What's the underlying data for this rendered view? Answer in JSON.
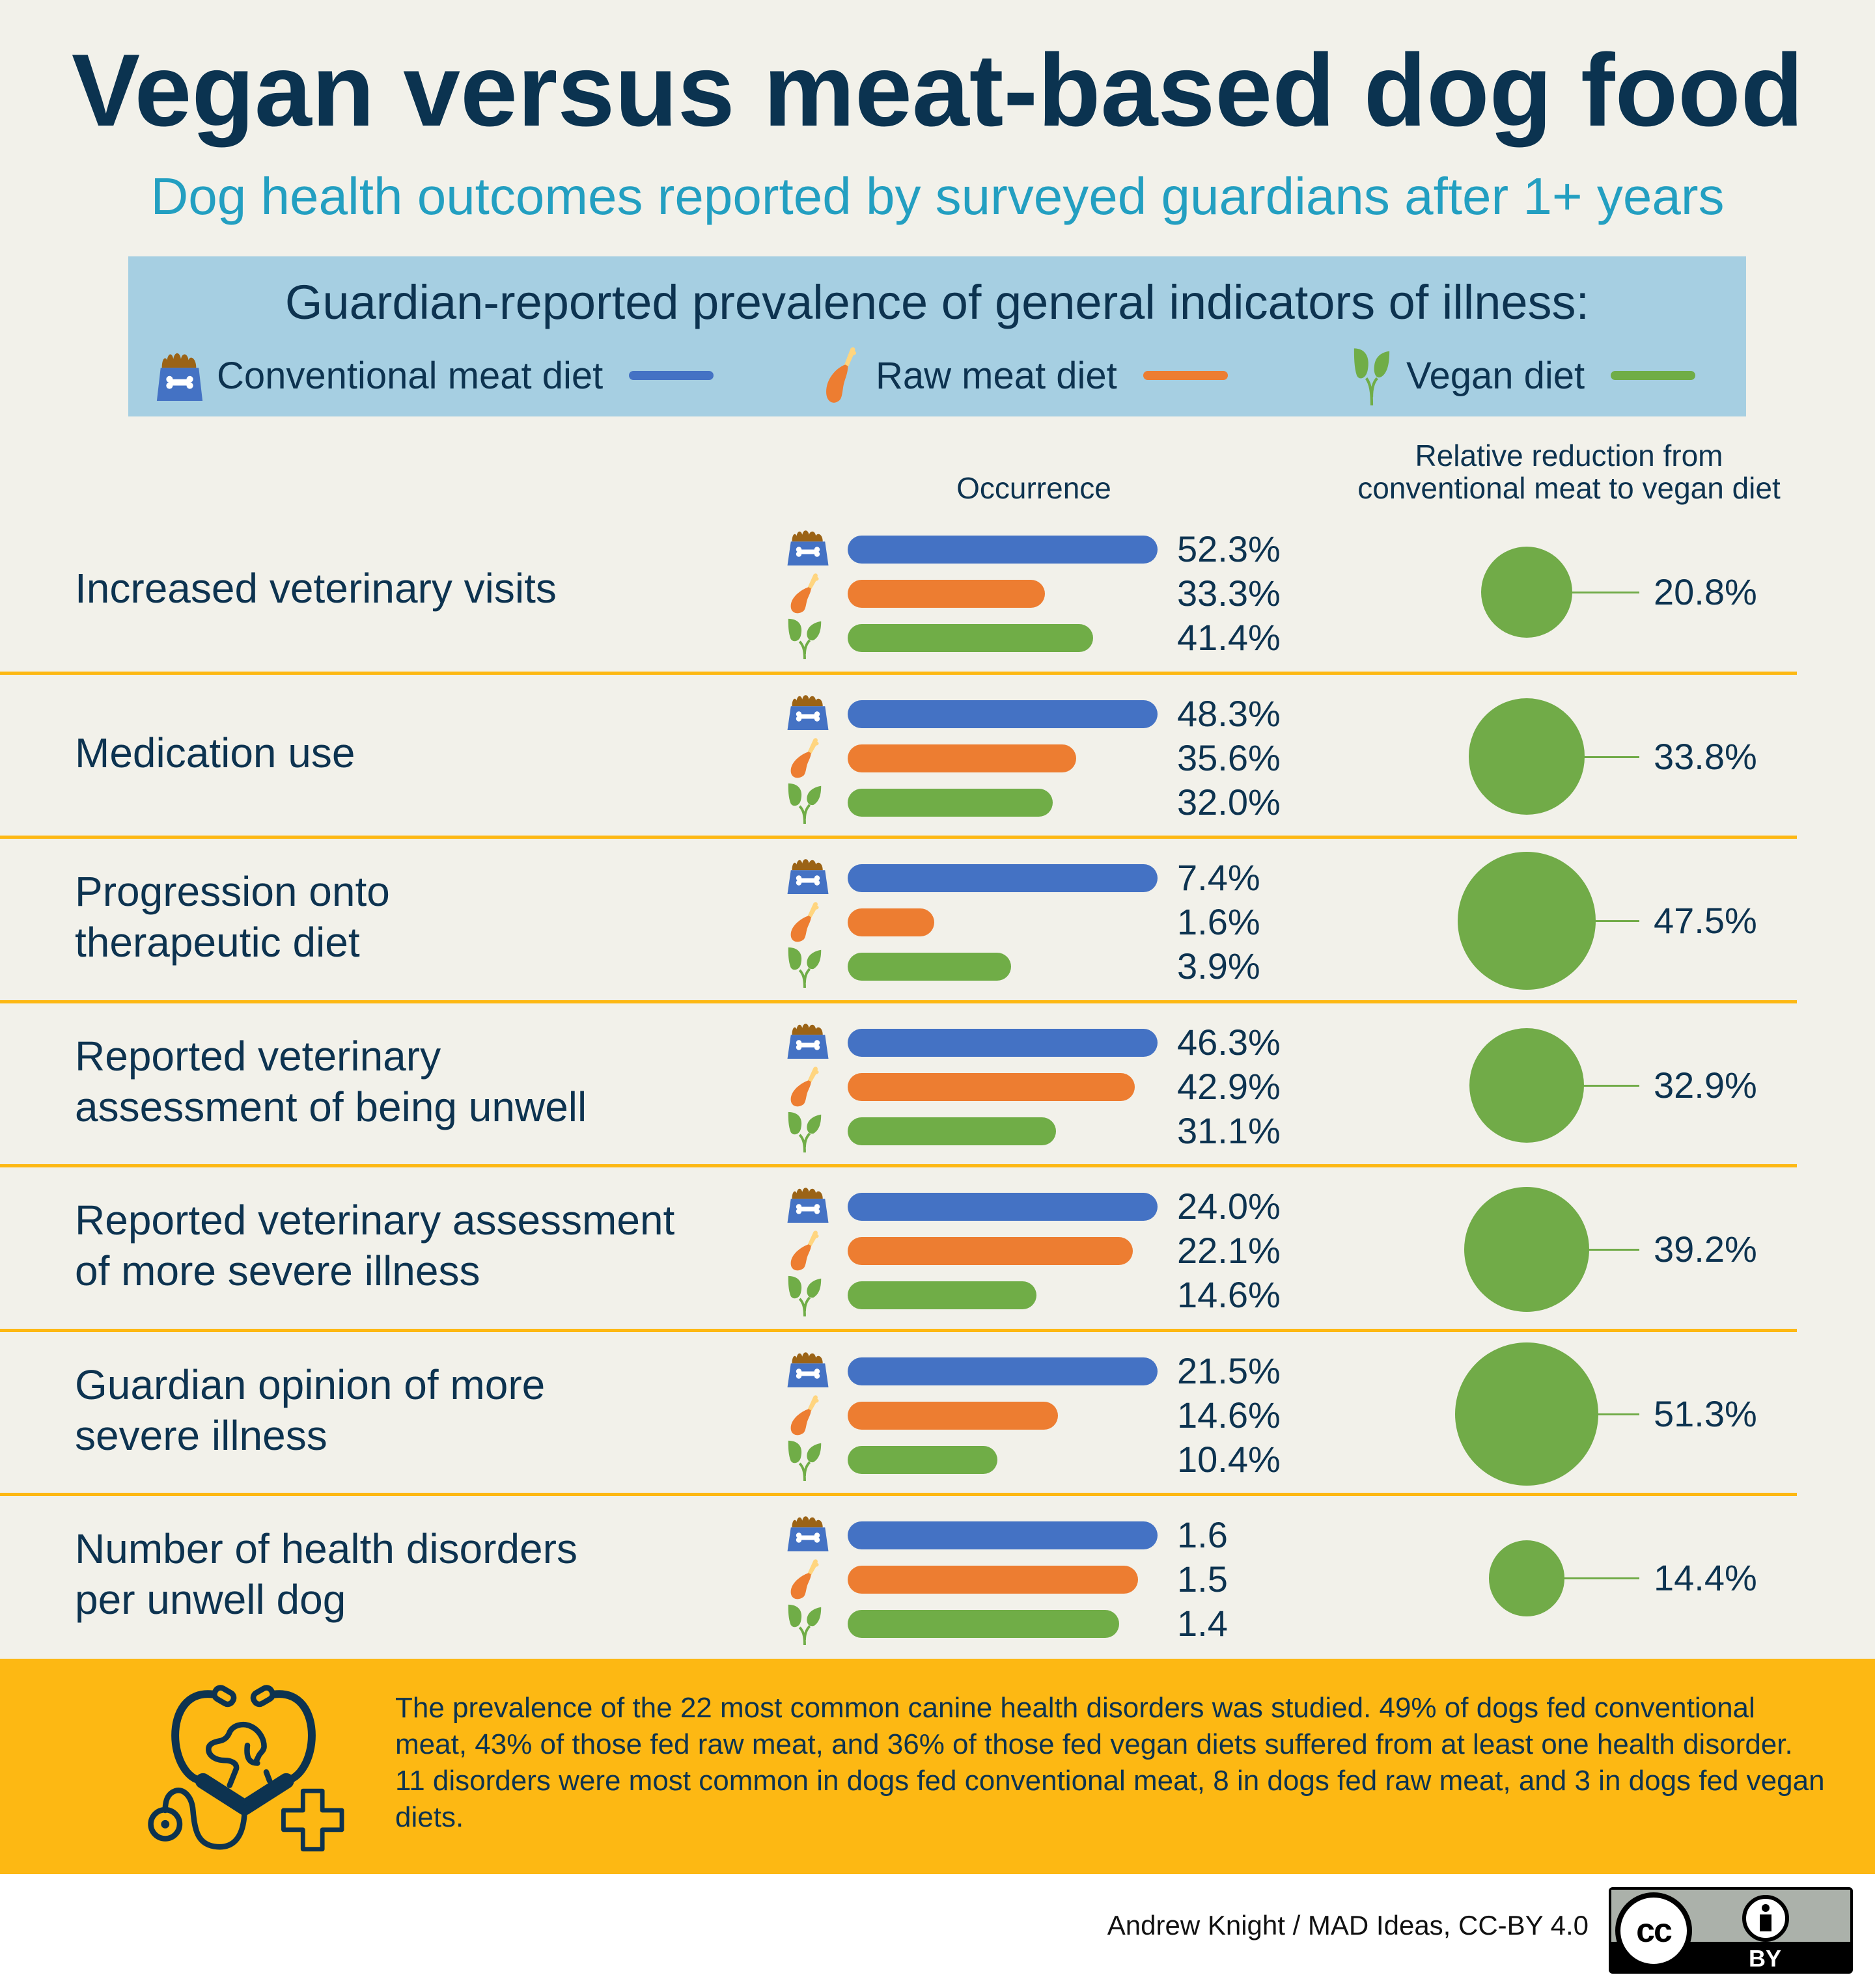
{
  "header": {
    "title": "Vegan versus meat-based dog food",
    "subtitle": "Dog health outcomes reported by surveyed guardians after 1+ years"
  },
  "legend": {
    "title": "Guardian-reported prevalence of general indicators of illness:",
    "items": [
      {
        "label": "Conventional meat diet",
        "icon": "dog-food-bowl-icon",
        "color": "#4472c4"
      },
      {
        "label": "Raw meat diet",
        "icon": "chicken-drumstick-icon",
        "color": "#ed7d31"
      },
      {
        "label": "Vegan diet",
        "icon": "sprout-icon",
        "color": "#70ad47"
      }
    ]
  },
  "columns": {
    "occurrence": "Occurrence",
    "reduction_line1": "Relative reduction from",
    "reduction_line2": "conventional meat to vegan diet"
  },
  "chart_data": {
    "type": "bar",
    "title": "Guardian-reported prevalence of general indicators of illness",
    "series_names": [
      "Conventional meat diet",
      "Raw meat diet",
      "Vegan diet"
    ],
    "series_colors": [
      "#4472c4",
      "#ed7d31",
      "#70ad47"
    ],
    "bar_scaling": "each row normalized to conventional meat value",
    "reduction_marker": "bubble (area proportional to value)",
    "rows": [
      {
        "label_lines": [
          "Increased veterinary visits"
        ],
        "values": [
          52.3,
          33.3,
          41.4
        ],
        "value_labels": [
          "52.3%",
          "33.3%",
          "41.4%"
        ],
        "reduction": 20.8,
        "reduction_label": "20.8%"
      },
      {
        "label_lines": [
          "Medication use"
        ],
        "values": [
          48.3,
          35.6,
          32.0
        ],
        "value_labels": [
          "48.3%",
          "35.6%",
          "32.0%"
        ],
        "reduction": 33.8,
        "reduction_label": "33.8%"
      },
      {
        "label_lines": [
          "Progression onto",
          "therapeutic diet"
        ],
        "values": [
          7.4,
          1.6,
          3.9
        ],
        "value_labels": [
          "7.4%",
          "1.6%",
          "3.9%"
        ],
        "reduction": 47.5,
        "reduction_label": "47.5%"
      },
      {
        "label_lines": [
          "Reported veterinary",
          "assessment of being unwell"
        ],
        "values": [
          46.3,
          42.9,
          31.1
        ],
        "value_labels": [
          "46.3%",
          "42.9%",
          "31.1%"
        ],
        "reduction": 32.9,
        "reduction_label": "32.9%"
      },
      {
        "label_lines": [
          "Reported veterinary assessment",
          "of more severe illness"
        ],
        "values": [
          24.0,
          22.1,
          14.6
        ],
        "value_labels": [
          "24.0%",
          "22.1%",
          "14.6%"
        ],
        "reduction": 39.2,
        "reduction_label": "39.2%"
      },
      {
        "label_lines": [
          "Guardian opinion of more",
          "severe illness"
        ],
        "values": [
          21.5,
          14.6,
          10.4
        ],
        "value_labels": [
          "21.5%",
          "14.6%",
          "10.4%"
        ],
        "reduction": 51.3,
        "reduction_label": "51.3%"
      },
      {
        "label_lines": [
          "Number of health disorders",
          "per unwell dog"
        ],
        "values": [
          1.6,
          1.5,
          1.4
        ],
        "value_labels": [
          "1.6",
          "1.5",
          "1.4"
        ],
        "reduction": 14.4,
        "reduction_label": "14.4%"
      }
    ]
  },
  "summary": {
    "icon": "stethoscope-dog-icon",
    "text": "The prevalence of the 22 most common canine health disorders was studied. 49% of dogs fed conventional meat, 43% of those fed raw meat, and 36% of those fed vegan diets suffered from at least one health disorder. 11 disorders were most common in dogs fed conventional meat, 8 in dogs fed raw meat, and 3 in dogs fed vegan diets."
  },
  "footer": {
    "credit": "Andrew Knight / MAD Ideas, CC-BY 4.0",
    "license_badge": {
      "cc": "cc",
      "by": "BY"
    }
  },
  "colors": {
    "background": "#f2f1ea",
    "title": "#0b3350",
    "subtitle": "#239fc1",
    "legend_box": "#a6cfe2",
    "separator": "#fdb813",
    "summary_panel": "#fdb813",
    "bubble": "#71ab48"
  }
}
